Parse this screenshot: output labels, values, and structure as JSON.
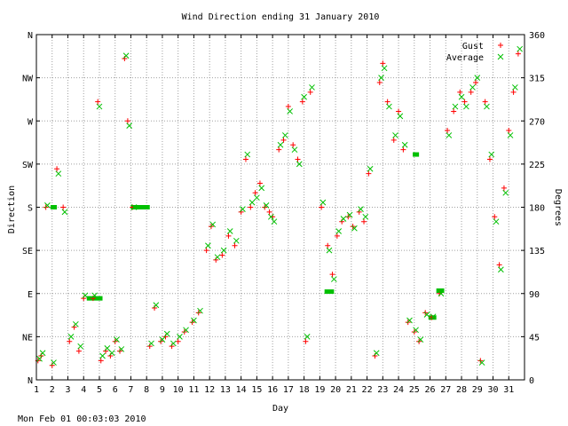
{
  "chart_data": {
    "type": "scatter",
    "title": "Wind Direction ending 31 January 2010",
    "xlabel": "Day",
    "ylabel_left": "Direction",
    "ylabel_right": "Degrees",
    "footer": "Mon Feb 01 00:03:03 2010",
    "xlim": [
      1,
      32
    ],
    "ylim": [
      0,
      360
    ],
    "x_ticks": [
      "1",
      "2",
      "3",
      "4",
      "5",
      "6",
      "7",
      "8",
      "9",
      "10",
      "11",
      "12",
      "13",
      "14",
      "15",
      "16",
      "17",
      "18",
      "19",
      "20",
      "21",
      "22",
      "23",
      "24",
      "25",
      "26",
      "27",
      "28",
      "29",
      "30",
      "31"
    ],
    "y_ticks_left": [
      {
        "value": 0,
        "label": "N"
      },
      {
        "value": 45,
        "label": "NE"
      },
      {
        "value": 90,
        "label": "E"
      },
      {
        "value": 135,
        "label": "SE"
      },
      {
        "value": 180,
        "label": "S"
      },
      {
        "value": 225,
        "label": "SW"
      },
      {
        "value": 270,
        "label": "W"
      },
      {
        "value": 315,
        "label": "NW"
      },
      {
        "value": 360,
        "label": "N"
      }
    ],
    "y_ticks_right": [
      "0",
      "45",
      "90",
      "135",
      "180",
      "225",
      "270",
      "315",
      "360"
    ],
    "grid": true,
    "legend_placement": "top-right",
    "series": [
      {
        "name": "Gust",
        "marker": "plus",
        "color": "#ff0000",
        "x": [
          1.1,
          1.3,
          1.6,
          2.0,
          2.3,
          2.7,
          3.1,
          3.4,
          3.7,
          4.0,
          4.6,
          4.9,
          5.1,
          5.4,
          5.7,
          6.0,
          6.3,
          6.6,
          6.8,
          7.1,
          8.2,
          8.5,
          8.9,
          9.2,
          9.6,
          10.0,
          10.4,
          10.9,
          11.3,
          11.8,
          12.1,
          12.4,
          12.8,
          13.2,
          13.6,
          14.0,
          14.3,
          14.6,
          14.9,
          15.2,
          15.5,
          15.8,
          16.0,
          16.4,
          16.7,
          17.0,
          17.3,
          17.6,
          17.9,
          18.1,
          18.4,
          19.1,
          19.5,
          19.8,
          20.1,
          20.4,
          20.8,
          21.1,
          21.5,
          21.8,
          22.1,
          22.5,
          22.8,
          23.0,
          23.3,
          23.7,
          24.0,
          24.3,
          24.6,
          25.0,
          25.3,
          25.7,
          26.1,
          26.6,
          27.1,
          27.5,
          27.9,
          28.2,
          28.6,
          28.9,
          29.2,
          29.5,
          29.8,
          30.1,
          30.4,
          30.7,
          31.0,
          31.3,
          31.6
        ],
        "y": [
          20,
          25,
          180,
          15,
          220,
          180,
          40,
          55,
          30,
          85,
          85,
          290,
          20,
          30,
          25,
          40,
          30,
          335,
          270,
          180,
          35,
          75,
          40,
          45,
          35,
          40,
          50,
          60,
          70,
          135,
          160,
          125,
          130,
          150,
          140,
          175,
          230,
          180,
          195,
          205,
          180,
          175,
          170,
          240,
          250,
          285,
          245,
          230,
          290,
          40,
          300,
          180,
          140,
          110,
          150,
          165,
          170,
          160,
          175,
          165,
          215,
          25,
          310,
          330,
          290,
          250,
          280,
          240,
          60,
          50,
          40,
          70,
          65,
          90,
          260,
          280,
          300,
          290,
          300,
          310,
          20,
          290,
          230,
          170,
          120,
          200,
          260,
          300,
          340
        ]
      },
      {
        "name": "Average",
        "marker": "cross",
        "color": "#00c000",
        "x": [
          1.2,
          1.4,
          1.7,
          2.1,
          2.4,
          2.8,
          3.2,
          3.5,
          3.8,
          4.1,
          4.7,
          5.0,
          5.2,
          5.5,
          5.8,
          6.1,
          6.4,
          6.7,
          6.9,
          7.2,
          8.3,
          8.6,
          9.0,
          9.3,
          9.7,
          10.1,
          10.5,
          11.0,
          11.4,
          11.9,
          12.2,
          12.5,
          12.9,
          13.3,
          13.7,
          14.1,
          14.4,
          14.7,
          15.0,
          15.3,
          15.6,
          15.9,
          16.1,
          16.5,
          16.8,
          17.1,
          17.4,
          17.7,
          18.0,
          18.2,
          18.5,
          19.2,
          19.6,
          19.9,
          20.2,
          20.5,
          20.9,
          21.2,
          21.6,
          21.9,
          22.2,
          22.6,
          22.9,
          23.1,
          23.4,
          23.8,
          24.1,
          24.4,
          24.7,
          25.1,
          25.4,
          25.8,
          26.2,
          26.7,
          27.2,
          27.6,
          28.0,
          28.3,
          28.7,
          29.0,
          29.3,
          29.6,
          29.9,
          30.2,
          30.5,
          30.8,
          31.1,
          31.4,
          31.7
        ],
        "y": [
          22,
          28,
          182,
          18,
          215,
          175,
          45,
          58,
          35,
          88,
          88,
          285,
          25,
          33,
          28,
          42,
          32,
          338,
          265,
          180,
          38,
          78,
          42,
          48,
          38,
          45,
          52,
          62,
          72,
          140,
          162,
          128,
          135,
          155,
          145,
          178,
          235,
          185,
          190,
          200,
          182,
          170,
          165,
          245,
          255,
          280,
          240,
          225,
          295,
          45,
          305,
          185,
          135,
          105,
          155,
          168,
          172,
          158,
          178,
          170,
          220,
          28,
          315,
          325,
          285,
          255,
          275,
          245,
          62,
          52,
          42,
          68,
          66,
          90,
          255,
          285,
          295,
          285,
          305,
          315,
          18,
          285,
          235,
          165,
          115,
          195,
          255,
          305,
          345
        ]
      }
    ],
    "bands": [
      {
        "series": "Average",
        "x0": 1.9,
        "x1": 2.3,
        "y": 180
      },
      {
        "series": "Average",
        "x0": 4.2,
        "x1": 5.2,
        "y": 85
      },
      {
        "series": "Average",
        "x0": 7.0,
        "x1": 8.2,
        "y": 180
      },
      {
        "series": "Average",
        "x0": 19.3,
        "x1": 19.9,
        "y": 92
      },
      {
        "series": "Average",
        "x0": 24.9,
        "x1": 25.3,
        "y": 235
      },
      {
        "series": "Average",
        "x0": 25.9,
        "x1": 26.4,
        "y": 65
      },
      {
        "series": "Average",
        "x0": 26.4,
        "x1": 26.9,
        "y": 93
      }
    ]
  }
}
